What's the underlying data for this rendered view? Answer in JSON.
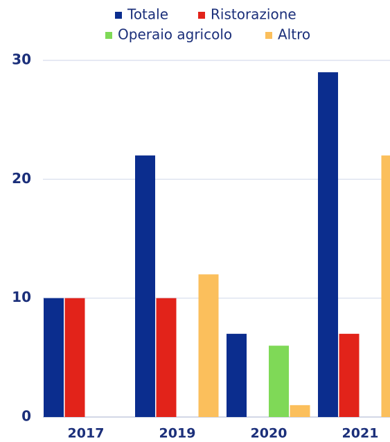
{
  "chart_data": {
    "type": "bar",
    "categories": [
      "2017",
      "2019",
      "2020",
      "2021"
    ],
    "series": [
      {
        "name": "Totale",
        "color": "#0b2d8e",
        "values": [
          10,
          22,
          7,
          29
        ]
      },
      {
        "name": "Ristorazione",
        "color": "#e2231a",
        "values": [
          10,
          10,
          0,
          7
        ]
      },
      {
        "name": "Operaio agricolo",
        "color": "#7fd957",
        "values": [
          0,
          0,
          6,
          0
        ]
      },
      {
        "name": "Altro",
        "color": "#fbbf5c",
        "values": [
          0,
          12,
          1,
          22
        ]
      }
    ],
    "ylim": [
      0,
      30
    ],
    "yticks": [
      0,
      10,
      20,
      30
    ],
    "grid": true,
    "legend": "top"
  }
}
